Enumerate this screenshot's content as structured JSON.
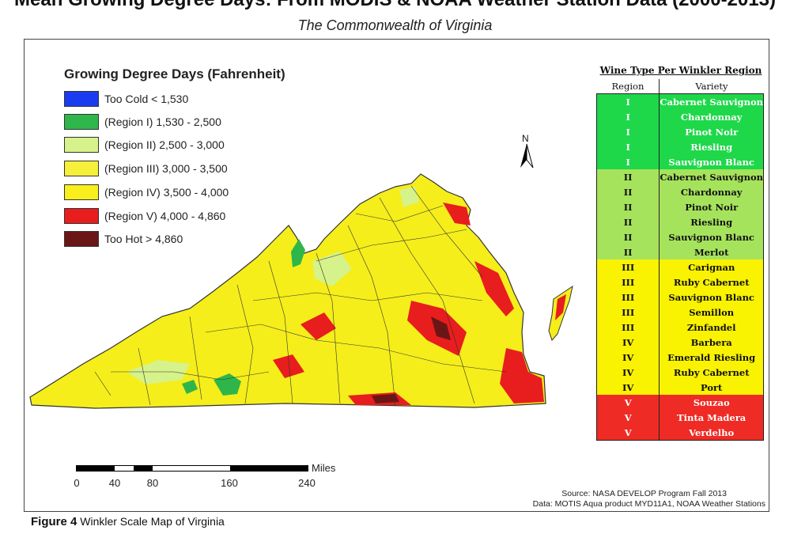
{
  "title": "Mean Growing Degree Days: From MODIS & NOAA Weather Station Data (2000-2013)",
  "subtitle": "The Commonwealth of Virginia",
  "legend": {
    "title": "Growing Degree Days (Fahrenheit)",
    "items": [
      {
        "label": "Too Cold < 1,530",
        "color": "#1a3cf0"
      },
      {
        "label": "(Region I) 1,530 - 2,500",
        "color": "#2fb64b"
      },
      {
        "label": "(Region II) 2,500 - 3,000",
        "color": "#d6f28a"
      },
      {
        "label": "(Region III) 3,000 - 3,500",
        "color": "#f5f03a"
      },
      {
        "label": "(Region IV) 3,500 - 4,000",
        "color": "#f8ef1c"
      },
      {
        "label": "(Region V) 4,000 - 4,860",
        "color": "#e81d1d"
      },
      {
        "label": "Too Hot > 4,860",
        "color": "#6b1616"
      }
    ]
  },
  "north_label": "N",
  "scale": {
    "unit": "Miles",
    "ticks": [
      "0",
      "40",
      "80",
      "160",
      "240"
    ]
  },
  "wine_table": {
    "title": "Wine Type Per Winkler Region",
    "headers": [
      "Region",
      "Variety"
    ],
    "rows": [
      {
        "region": "I",
        "variety": "Cabernet Sauvignon",
        "color": "#1ed84a",
        "text": "#ffffff"
      },
      {
        "region": "I",
        "variety": "Chardonnay",
        "color": "#1ed84a",
        "text": "#ffffff"
      },
      {
        "region": "I",
        "variety": "Pinot Noir",
        "color": "#1ed84a",
        "text": "#ffffff"
      },
      {
        "region": "I",
        "variety": "Riesling",
        "color": "#1ed84a",
        "text": "#ffffff"
      },
      {
        "region": "I",
        "variety": "Sauvignon Blanc",
        "color": "#1ed84a",
        "text": "#ffffff"
      },
      {
        "region": "II",
        "variety": "Cabernet Sauvignon",
        "color": "#a6e35c",
        "text": "#111111"
      },
      {
        "region": "II",
        "variety": "Chardonnay",
        "color": "#a6e35c",
        "text": "#111111"
      },
      {
        "region": "II",
        "variety": "Pinot Noir",
        "color": "#a6e35c",
        "text": "#111111"
      },
      {
        "region": "II",
        "variety": "Riesling",
        "color": "#a6e35c",
        "text": "#111111"
      },
      {
        "region": "II",
        "variety": "Sauvignon Blanc",
        "color": "#a6e35c",
        "text": "#111111"
      },
      {
        "region": "II",
        "variety": "Merlot",
        "color": "#a6e35c",
        "text": "#111111"
      },
      {
        "region": "III",
        "variety": "Carignan",
        "color": "#f9f200",
        "text": "#111111"
      },
      {
        "region": "III",
        "variety": "Ruby Cabernet",
        "color": "#f9f200",
        "text": "#111111"
      },
      {
        "region": "III",
        "variety": "Sauvignon Blanc",
        "color": "#f9f200",
        "text": "#111111"
      },
      {
        "region": "III",
        "variety": "Semillon",
        "color": "#f9f200",
        "text": "#111111"
      },
      {
        "region": "III",
        "variety": "Zinfandel",
        "color": "#f9f200",
        "text": "#111111"
      },
      {
        "region": "IV",
        "variety": "Barbera",
        "color": "#f9f200",
        "text": "#111111"
      },
      {
        "region": "IV",
        "variety": "Emerald Riesling",
        "color": "#f9f200",
        "text": "#111111"
      },
      {
        "region": "IV",
        "variety": "Ruby Cabernet",
        "color": "#f9f200",
        "text": "#111111"
      },
      {
        "region": "IV",
        "variety": "Port",
        "color": "#f9f200",
        "text": "#111111"
      },
      {
        "region": "V",
        "variety": "Souzao",
        "color": "#ee2b24",
        "text": "#ffffff"
      },
      {
        "region": "V",
        "variety": "Tinta Madera",
        "color": "#ee2b24",
        "text": "#ffffff"
      },
      {
        "region": "V",
        "variety": "Verdelho",
        "color": "#ee2b24",
        "text": "#ffffff"
      }
    ]
  },
  "source": "Source: NASA DEVELOP Program Fall 2013",
  "data_credit": "Data: MOTIS Aqua product MYD11A1, NOAA Weather Stations",
  "figure": {
    "number": "Figure 4",
    "caption": "Winkler Scale Map of Virginia"
  }
}
